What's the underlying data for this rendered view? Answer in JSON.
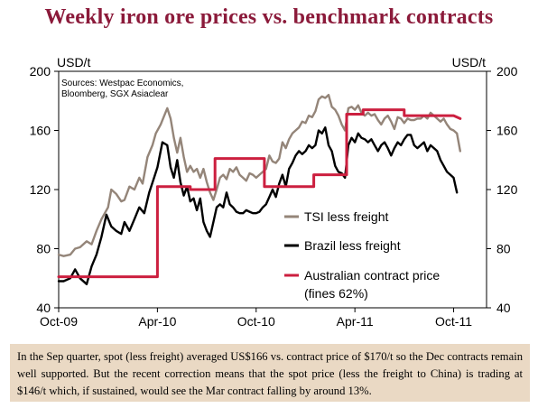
{
  "chart_data": {
    "type": "line",
    "title": "Weekly iron ore prices vs. benchmark contracts",
    "y_unit_left": "USD/t",
    "y_unit_right": "USD/t",
    "ylim": [
      40,
      200
    ],
    "yticks": [
      40,
      80,
      120,
      160,
      200
    ],
    "x_range_months": [
      0,
      26
    ],
    "xticks": [
      {
        "label": "Oct-09",
        "month": 0
      },
      {
        "label": "Apr-10",
        "month": 6
      },
      {
        "label": "Oct-10",
        "month": 12
      },
      {
        "label": "Apr-11",
        "month": 18
      },
      {
        "label": "Oct-11",
        "month": 24
      }
    ],
    "source_lines": [
      "Sources: Westpac Economics,",
      "Bloomberg, SGX Asiaclear"
    ],
    "series": [
      {
        "name": "TSI less freight",
        "color": "#948579",
        "points": [
          [
            0,
            76
          ],
          [
            0.3,
            75
          ],
          [
            0.7,
            76
          ],
          [
            1.0,
            80
          ],
          [
            1.3,
            81
          ],
          [
            1.7,
            85
          ],
          [
            2.0,
            83
          ],
          [
            2.3,
            92
          ],
          [
            2.6,
            100
          ],
          [
            3.0,
            108
          ],
          [
            3.2,
            120
          ],
          [
            3.5,
            117
          ],
          [
            3.8,
            112
          ],
          [
            4.0,
            113
          ],
          [
            4.3,
            122
          ],
          [
            4.6,
            120
          ],
          [
            4.9,
            128
          ],
          [
            5.1,
            124
          ],
          [
            5.4,
            142
          ],
          [
            5.7,
            150
          ],
          [
            5.9,
            158
          ],
          [
            6.2,
            164
          ],
          [
            6.6,
            175
          ],
          [
            6.8,
            168
          ],
          [
            7.0,
            155
          ],
          [
            7.2,
            145
          ],
          [
            7.4,
            155
          ],
          [
            7.6,
            142
          ],
          [
            7.8,
            132
          ],
          [
            8.0,
            136
          ],
          [
            8.2,
            132
          ],
          [
            8.4,
            134
          ],
          [
            8.6,
            128
          ],
          [
            8.8,
            134
          ],
          [
            9.0,
            125
          ],
          [
            9.2,
            118
          ],
          [
            9.4,
            113
          ],
          [
            9.6,
            120
          ],
          [
            9.8,
            128
          ],
          [
            10.0,
            130
          ],
          [
            10.2,
            127
          ],
          [
            10.4,
            134
          ],
          [
            10.6,
            132
          ],
          [
            10.8,
            135
          ],
          [
            11.0,
            130
          ],
          [
            11.2,
            128
          ],
          [
            11.4,
            126
          ],
          [
            11.6,
            131
          ],
          [
            11.8,
            130
          ],
          [
            12.0,
            128
          ],
          [
            12.2,
            130
          ],
          [
            12.4,
            132
          ],
          [
            12.6,
            134
          ],
          [
            12.8,
            143
          ],
          [
            13.0,
            139
          ],
          [
            13.2,
            138
          ],
          [
            13.4,
            141
          ],
          [
            13.6,
            152
          ],
          [
            13.8,
            148
          ],
          [
            14.0,
            154
          ],
          [
            14.2,
            158
          ],
          [
            14.4,
            160
          ],
          [
            14.6,
            162
          ],
          [
            14.8,
            166
          ],
          [
            15.0,
            165
          ],
          [
            15.2,
            170
          ],
          [
            15.4,
            169
          ],
          [
            15.6,
            173
          ],
          [
            15.8,
            181
          ],
          [
            16.0,
            183
          ],
          [
            16.2,
            182
          ],
          [
            16.4,
            184
          ],
          [
            16.6,
            176
          ],
          [
            16.8,
            174
          ],
          [
            17.0,
            170
          ],
          [
            17.2,
            164
          ],
          [
            17.4,
            160
          ],
          [
            17.6,
            175
          ],
          [
            17.8,
            176
          ],
          [
            18.0,
            174
          ],
          [
            18.2,
            177
          ],
          [
            18.4,
            172
          ],
          [
            18.6,
            170
          ],
          [
            18.8,
            172
          ],
          [
            19.0,
            170
          ],
          [
            19.2,
            171
          ],
          [
            19.4,
            167
          ],
          [
            19.6,
            164
          ],
          [
            19.8,
            168
          ],
          [
            20.0,
            170
          ],
          [
            20.2,
            166
          ],
          [
            20.4,
            161
          ],
          [
            20.6,
            169
          ],
          [
            20.8,
            168
          ],
          [
            21.0,
            165
          ],
          [
            21.2,
            168
          ],
          [
            21.4,
            167
          ],
          [
            21.6,
            167
          ],
          [
            21.8,
            168
          ],
          [
            22.0,
            168
          ],
          [
            22.2,
            170
          ],
          [
            22.4,
            168
          ],
          [
            22.6,
            172
          ],
          [
            22.8,
            170
          ],
          [
            23.0,
            168
          ],
          [
            23.2,
            166
          ],
          [
            23.4,
            168
          ],
          [
            23.6,
            164
          ],
          [
            23.8,
            161
          ],
          [
            24.0,
            160
          ],
          [
            24.2,
            158
          ],
          [
            24.4,
            146
          ]
        ]
      },
      {
        "name": "Brazil less freight",
        "color": "#000000",
        "points": [
          [
            0,
            58
          ],
          [
            0.3,
            58
          ],
          [
            0.7,
            60
          ],
          [
            1.0,
            66
          ],
          [
            1.3,
            60
          ],
          [
            1.7,
            56
          ],
          [
            2.0,
            68
          ],
          [
            2.3,
            76
          ],
          [
            2.6,
            88
          ],
          [
            2.9,
            103
          ],
          [
            3.2,
            95
          ],
          [
            3.5,
            92
          ],
          [
            3.8,
            90
          ],
          [
            4.0,
            98
          ],
          [
            4.3,
            92
          ],
          [
            4.6,
            100
          ],
          [
            4.9,
            108
          ],
          [
            5.2,
            104
          ],
          [
            5.5,
            118
          ],
          [
            5.8,
            128
          ],
          [
            6.0,
            135
          ],
          [
            6.3,
            152
          ],
          [
            6.6,
            150
          ],
          [
            6.8,
            135
          ],
          [
            7.0,
            128
          ],
          [
            7.2,
            140
          ],
          [
            7.4,
            125
          ],
          [
            7.6,
            116
          ],
          [
            7.8,
            122
          ],
          [
            8.0,
            112
          ],
          [
            8.2,
            114
          ],
          [
            8.4,
            106
          ],
          [
            8.6,
            114
          ],
          [
            8.8,
            98
          ],
          [
            9.0,
            92
          ],
          [
            9.2,
            88
          ],
          [
            9.4,
            98
          ],
          [
            9.6,
            108
          ],
          [
            9.8,
            110
          ],
          [
            10.0,
            108
          ],
          [
            10.2,
            118
          ],
          [
            10.4,
            110
          ],
          [
            10.6,
            108
          ],
          [
            10.8,
            105
          ],
          [
            11.0,
            104
          ],
          [
            11.2,
            104
          ],
          [
            11.4,
            106
          ],
          [
            11.6,
            105
          ],
          [
            11.8,
            104
          ],
          [
            12.0,
            104
          ],
          [
            12.2,
            105
          ],
          [
            12.4,
            108
          ],
          [
            12.6,
            110
          ],
          [
            12.8,
            115
          ],
          [
            13.0,
            120
          ],
          [
            13.2,
            115
          ],
          [
            13.4,
            124
          ],
          [
            13.6,
            130
          ],
          [
            13.8,
            122
          ],
          [
            14.0,
            134
          ],
          [
            14.2,
            138
          ],
          [
            14.4,
            143
          ],
          [
            14.6,
            146
          ],
          [
            14.8,
            144
          ],
          [
            15.0,
            146
          ],
          [
            15.2,
            150
          ],
          [
            15.4,
            148
          ],
          [
            15.6,
            150
          ],
          [
            15.8,
            160
          ],
          [
            16.0,
            158
          ],
          [
            16.2,
            162
          ],
          [
            16.4,
            150
          ],
          [
            16.6,
            146
          ],
          [
            16.8,
            136
          ],
          [
            17.0,
            132
          ],
          [
            17.2,
            131
          ],
          [
            17.4,
            128
          ],
          [
            17.6,
            150
          ],
          [
            17.8,
            155
          ],
          [
            18.0,
            152
          ],
          [
            18.2,
            158
          ],
          [
            18.4,
            155
          ],
          [
            18.6,
            154
          ],
          [
            18.8,
            152
          ],
          [
            19.0,
            154
          ],
          [
            19.2,
            150
          ],
          [
            19.4,
            146
          ],
          [
            19.6,
            150
          ],
          [
            19.8,
            152
          ],
          [
            20.0,
            148
          ],
          [
            20.2,
            143
          ],
          [
            20.4,
            148
          ],
          [
            20.6,
            152
          ],
          [
            20.8,
            150
          ],
          [
            21.0,
            154
          ],
          [
            21.2,
            157
          ],
          [
            21.4,
            157
          ],
          [
            21.6,
            150
          ],
          [
            21.8,
            148
          ],
          [
            22.0,
            150
          ],
          [
            22.2,
            152
          ],
          [
            22.4,
            146
          ],
          [
            22.6,
            150
          ],
          [
            22.8,
            148
          ],
          [
            23.0,
            146
          ],
          [
            23.2,
            140
          ],
          [
            23.4,
            136
          ],
          [
            23.6,
            132
          ],
          [
            23.8,
            130
          ],
          [
            24.0,
            128
          ],
          [
            24.2,
            118
          ]
        ]
      },
      {
        "name": "Australian contract price",
        "name_line2": "(fines 62%)",
        "color": "#cc1f3f",
        "points": [
          [
            0,
            61
          ],
          [
            6.0,
            61
          ],
          [
            6.0,
            122
          ],
          [
            8.0,
            122
          ],
          [
            8.0,
            120
          ],
          [
            9.5,
            120
          ],
          [
            9.5,
            141
          ],
          [
            12.5,
            141
          ],
          [
            12.5,
            122
          ],
          [
            15.5,
            122
          ],
          [
            15.5,
            130
          ],
          [
            17.5,
            130
          ],
          [
            17.5,
            171
          ],
          [
            18.5,
            171
          ],
          [
            18.5,
            174
          ],
          [
            21.0,
            174
          ],
          [
            21.0,
            170
          ],
          [
            24.0,
            170
          ],
          [
            24.4,
            168
          ]
        ]
      }
    ],
    "caption": "In the Sep quarter, spot (less freight) averaged US$166 vs. contract price of $170/t so the Dec contracts remain well supported. But the recent correction means that the spot price (less the freight to China) is trading at $146/t which, if sustained, would see the Mar contract falling by around 13%."
  }
}
